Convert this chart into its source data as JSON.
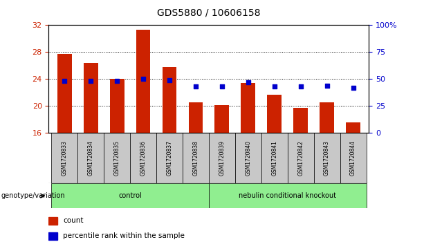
{
  "title": "GDS5880 / 10606158",
  "samples": [
    "GSM1720833",
    "GSM1720834",
    "GSM1720835",
    "GSM1720836",
    "GSM1720837",
    "GSM1720838",
    "GSM1720839",
    "GSM1720840",
    "GSM1720841",
    "GSM1720842",
    "GSM1720843",
    "GSM1720844"
  ],
  "counts": [
    27.7,
    26.4,
    24.0,
    31.3,
    25.8,
    20.6,
    20.1,
    23.4,
    21.7,
    19.7,
    20.6,
    17.6
  ],
  "percentiles": [
    48,
    48,
    48,
    50,
    49,
    43,
    43,
    47,
    43,
    43,
    44,
    42
  ],
  "ylim_left": [
    16,
    32
  ],
  "ylim_right": [
    0,
    100
  ],
  "yticks_left": [
    16,
    20,
    24,
    28,
    32
  ],
  "yticks_right": [
    0,
    25,
    50,
    75,
    100
  ],
  "bar_color": "#cc2200",
  "dot_color": "#0000cc",
  "group_row_color": "#c8c8c8",
  "control_bg": "#90ee90",
  "knockout_bg": "#90ee90",
  "groups": [
    {
      "label": "control",
      "start": 0,
      "end": 6
    },
    {
      "label": "nebulin conditional knockout",
      "start": 6,
      "end": 12
    }
  ]
}
